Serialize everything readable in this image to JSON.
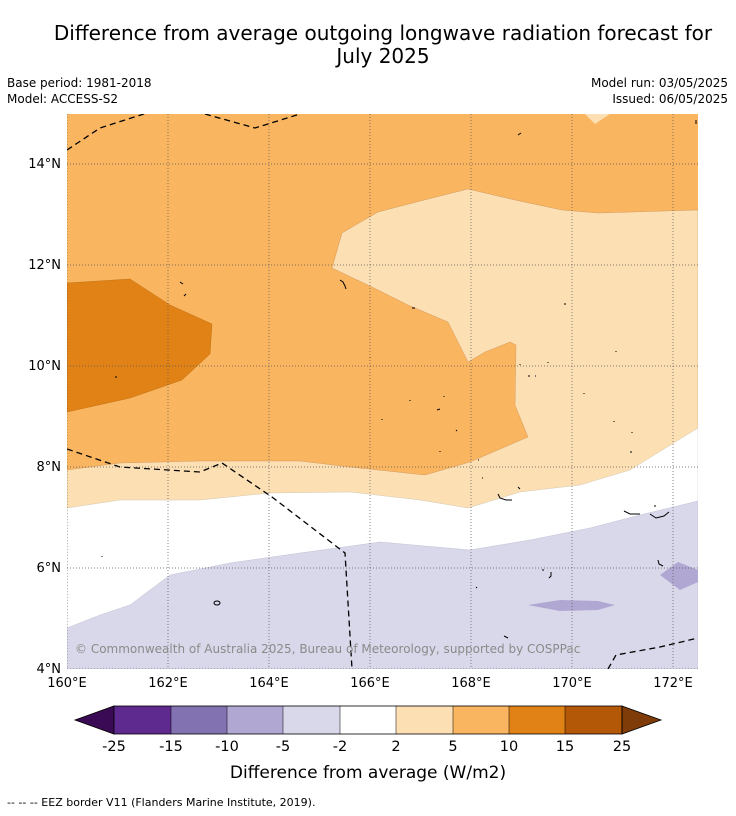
{
  "header": {
    "title_line1": "Difference from average outgoing longwave radiation forecast for",
    "title_line2": "July 2025",
    "base_period": "Base period: 1981-2018",
    "model": "Model: ACCESS-S2",
    "model_run": "Model run: 03/05/2025",
    "issued": "Issued: 06/05/2025"
  },
  "map": {
    "lat_labels": [
      "14°N",
      "12°N",
      "10°N",
      "8°N",
      "6°N",
      "4°N"
    ],
    "lon_labels": [
      "160°E",
      "162°E",
      "164°E",
      "166°E",
      "168°E",
      "170°E",
      "172°E"
    ],
    "copyright": "© Commonwealth of Australia 2025, Bureau of Meteorology, supported by COSPPac"
  },
  "colorbar": {
    "ticks": [
      "-25",
      "-15",
      "-10",
      "-5",
      "-2",
      "2",
      "5",
      "10",
      "15",
      "25"
    ],
    "title": "Difference from average (W/m2)",
    "colors": [
      "#3b0a55",
      "#5e2a8f",
      "#8272b2",
      "#b0a8d3",
      "#d8d8ea",
      "#ffffff",
      "#fddfb4",
      "#f9b55f",
      "#e08216",
      "#b35806",
      "#7f3b08"
    ]
  },
  "footer": {
    "legend": "--  --  -- EEZ border V11 (Flanders Marine Institute, 2019)."
  }
}
